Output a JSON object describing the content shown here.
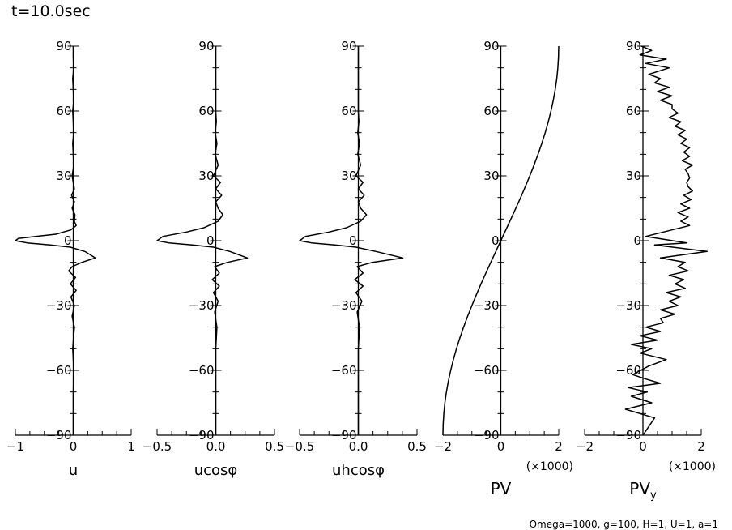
{
  "title": "t=10.0sec",
  "footer": "Omega=1000, g=100, H=1, U=1, a=1",
  "chart_data": [
    {
      "type": "line",
      "xlabel": "u",
      "xlim": [
        -1,
        1
      ],
      "xticks": [
        -1,
        0,
        1
      ],
      "xtick_labels": [
        "−1",
        "0",
        "1"
      ],
      "ylim": [
        -90,
        90
      ],
      "yticks": [
        -90,
        -60,
        -30,
        0,
        30,
        60,
        90
      ],
      "ytick_labels": [
        "−90",
        "−60",
        "−30",
        "0",
        "30",
        "60",
        "90"
      ],
      "multiplier": "",
      "series": [
        {
          "x": [
            0,
            0,
            0.01,
            -0.01,
            0,
            0.01,
            -0.01,
            0,
            0.01,
            -0.01,
            0,
            0.01,
            -0.02,
            0,
            0.02,
            -0.03,
            0.02,
            -0.02,
            0.03,
            0.02,
            0.05,
            -0.04,
            -0.3,
            -0.65,
            -0.95,
            -1.0,
            -0.8,
            -0.4,
            -0.05,
            0.2,
            0.38,
            0.15,
            -0.02,
            -0.08,
            0.04,
            -0.05,
            0.05,
            -0.04,
            0.02,
            -0.02,
            0.02,
            -0.01,
            0.01,
            0,
            0,
            0,
            0
          ],
          "y": [
            90,
            85,
            80,
            75,
            70,
            65,
            60,
            55,
            50,
            45,
            40,
            35,
            30,
            27,
            24,
            21,
            18,
            15,
            12,
            9,
            7,
            5,
            3,
            2,
            1,
            0,
            -1,
            -2,
            -3,
            -5,
            -8,
            -10,
            -12,
            -14,
            -17,
            -20,
            -23,
            -26,
            -30,
            -35,
            -40,
            -50,
            -60,
            -70,
            -80,
            -85,
            -90
          ]
        }
      ]
    },
    {
      "type": "line",
      "xlabel": "ucosφ",
      "xlim": [
        -0.5,
        0.5
      ],
      "xticks": [
        -0.5,
        0,
        0.5
      ],
      "xtick_labels": [
        "−0.5",
        "0.0",
        "0.5"
      ],
      "ylim": [
        -90,
        90
      ],
      "yticks": [
        -90,
        -60,
        -30,
        0,
        30,
        60,
        90
      ],
      "ytick_labels": [
        "−90",
        "−60",
        "−30",
        "0",
        "30",
        "60",
        "90"
      ],
      "multiplier": "",
      "series": [
        {
          "x": [
            0,
            0,
            0,
            0,
            0,
            0,
            0,
            0.005,
            -0.005,
            0.01,
            -0.005,
            0.02,
            -0.02,
            0.04,
            0,
            0.05,
            0,
            0.02,
            0.06,
            0.02,
            -0.1,
            -0.25,
            -0.45,
            -0.5,
            -0.4,
            -0.2,
            -0.02,
            0.12,
            0.27,
            0.1,
            -0.01,
            0.03,
            -0.03,
            0.03,
            -0.02,
            0.02,
            -0.01,
            0.01,
            0,
            0,
            0,
            0
          ],
          "y": [
            90,
            85,
            80,
            75,
            70,
            65,
            60,
            55,
            50,
            45,
            40,
            35,
            30,
            27,
            24,
            21,
            18,
            15,
            12,
            9,
            6,
            4,
            2,
            0,
            -1,
            -2,
            -3,
            -5,
            -8,
            -10,
            -12,
            -15,
            -18,
            -21,
            -24,
            -28,
            -33,
            -40,
            -50,
            -60,
            -75,
            -90
          ]
        }
      ]
    },
    {
      "type": "line",
      "xlabel": "uhcosφ",
      "xlim": [
        -0.5,
        0.5
      ],
      "xticks": [
        -0.5,
        0,
        0.5
      ],
      "xtick_labels": [
        "−0.5",
        "0.0",
        "0.5"
      ],
      "ylim": [
        -90,
        90
      ],
      "yticks": [
        -90,
        -60,
        -30,
        0,
        30,
        60,
        90
      ],
      "ytick_labels": [
        "−90",
        "−60",
        "−30",
        "0",
        "30",
        "60",
        "90"
      ],
      "multiplier": "",
      "series": [
        {
          "x": [
            0,
            0,
            0,
            0,
            0,
            0,
            0,
            0.005,
            -0.005,
            0.01,
            -0.005,
            0.02,
            -0.02,
            0.04,
            0,
            0.05,
            0,
            0.02,
            0.07,
            0.02,
            -0.1,
            -0.25,
            -0.45,
            -0.5,
            -0.4,
            -0.2,
            -0.02,
            0.15,
            0.38,
            0.12,
            -0.01,
            0.04,
            -0.03,
            0.04,
            -0.02,
            0.03,
            -0.01,
            0.01,
            0,
            0,
            0,
            0
          ],
          "y": [
            90,
            85,
            80,
            75,
            70,
            65,
            60,
            55,
            50,
            45,
            40,
            35,
            30,
            27,
            24,
            21,
            18,
            15,
            12,
            9,
            6,
            4,
            2,
            0,
            -1,
            -2,
            -3,
            -5,
            -8,
            -10,
            -12,
            -15,
            -18,
            -21,
            -24,
            -28,
            -33,
            -40,
            -50,
            -60,
            -75,
            -90
          ]
        }
      ]
    },
    {
      "type": "line",
      "xlabel": "PV",
      "xlim": [
        -2,
        2
      ],
      "xticks": [
        -2,
        0,
        2
      ],
      "xtick_labels": [
        "−2",
        "0",
        "2"
      ],
      "ylim": [
        -90,
        90
      ],
      "yticks": [
        -90,
        -60,
        -30,
        0,
        30,
        60,
        90
      ],
      "ytick_labels": [
        "−90",
        "−60",
        "−30",
        "0",
        "30",
        "60",
        "90"
      ],
      "multiplier": "(×1000)",
      "series": [
        {
          "x": [
            -2,
            -1.992,
            -1.97,
            -1.932,
            -1.879,
            -1.813,
            -1.732,
            -1.638,
            -1.532,
            -1.414,
            -1.286,
            -1.147,
            -1.0,
            -0.845,
            -0.684,
            -0.518,
            -0.347,
            -0.174,
            0,
            0.174,
            0.347,
            0.518,
            0.684,
            0.845,
            1.0,
            1.147,
            1.286,
            1.414,
            1.532,
            1.638,
            1.732,
            1.813,
            1.879,
            1.932,
            1.97,
            1.992,
            2
          ],
          "y": [
            -90,
            -85,
            -80,
            -75,
            -70,
            -65,
            -60,
            -55,
            -50,
            -45,
            -40,
            -35,
            -30,
            -25,
            -20,
            -15,
            -10,
            -5,
            0,
            5,
            10,
            15,
            20,
            25,
            30,
            35,
            40,
            45,
            50,
            55,
            60,
            65,
            70,
            75,
            80,
            85,
            90
          ]
        }
      ]
    },
    {
      "type": "line",
      "xlabel": "PV",
      "xlabel_sub": "y",
      "xlim": [
        -2,
        2
      ],
      "xticks": [
        -2,
        0,
        2
      ],
      "xtick_labels": [
        "−2",
        "0",
        "2"
      ],
      "ylim": [
        -90,
        90
      ],
      "yticks": [
        -90,
        -60,
        -30,
        0,
        30,
        60,
        90
      ],
      "ytick_labels": [
        "−90",
        "−60",
        "−30",
        "0",
        "30",
        "60",
        "90"
      ],
      "multiplier": "(×1000)",
      "series": [
        {
          "x": [
            -0.05,
            0.3,
            -0.1,
            0.8,
            0.1,
            0.9,
            0.2,
            0.6,
            0.4,
            0.9,
            0.5,
            1.0,
            0.6,
            1.0,
            1.0,
            1.2,
            0.9,
            1.3,
            1.1,
            1.45,
            1.2,
            1.5,
            1.3,
            1.6,
            1.4,
            1.6,
            1.35,
            1.7,
            1.45,
            1.55,
            1.6,
            1.5,
            1.55,
            1.7,
            1.4,
            1.65,
            1.3,
            1.6,
            1.2,
            1.55,
            1.3,
            1.6,
            0.1,
            1.5,
            0.4,
            2.2,
            0.6,
            1.45,
            1.2,
            1.55,
            0.9,
            1.4,
            1.1,
            1.45,
            0.8,
            1.3,
            0.9,
            1.2,
            0.6,
            1.1,
            0.6,
            0.7,
            0.1,
            0.6,
            -0.1,
            0.5,
            -0.4,
            0.3,
            -0.1,
            0.8,
            0.2,
            -0.35,
            0.1,
            0.6,
            -0.5,
            0.15,
            -0.4,
            0.3,
            -0.6,
            0.4,
            0
          ],
          "y": [
            90,
            88,
            86,
            84,
            82,
            80,
            77,
            75,
            73,
            71,
            69,
            67,
            65,
            63,
            61,
            59,
            57,
            55,
            53,
            51,
            49,
            47,
            45,
            43,
            41,
            39,
            37,
            35,
            33,
            31,
            29,
            27,
            25,
            23,
            21,
            19,
            17,
            15,
            13,
            11,
            9,
            7,
            2,
            -1,
            -2,
            -5,
            -8,
            -10,
            -12,
            -14,
            -16,
            -18,
            -20,
            -22,
            -24,
            -26,
            -28,
            -30,
            -32,
            -34,
            -36,
            -38,
            -40,
            -42,
            -44,
            -46,
            -48,
            -50,
            -52,
            -55,
            -58,
            -62,
            -64,
            -66,
            -68,
            -70,
            -72,
            -75,
            -78,
            -82,
            -90
          ]
        }
      ]
    }
  ]
}
